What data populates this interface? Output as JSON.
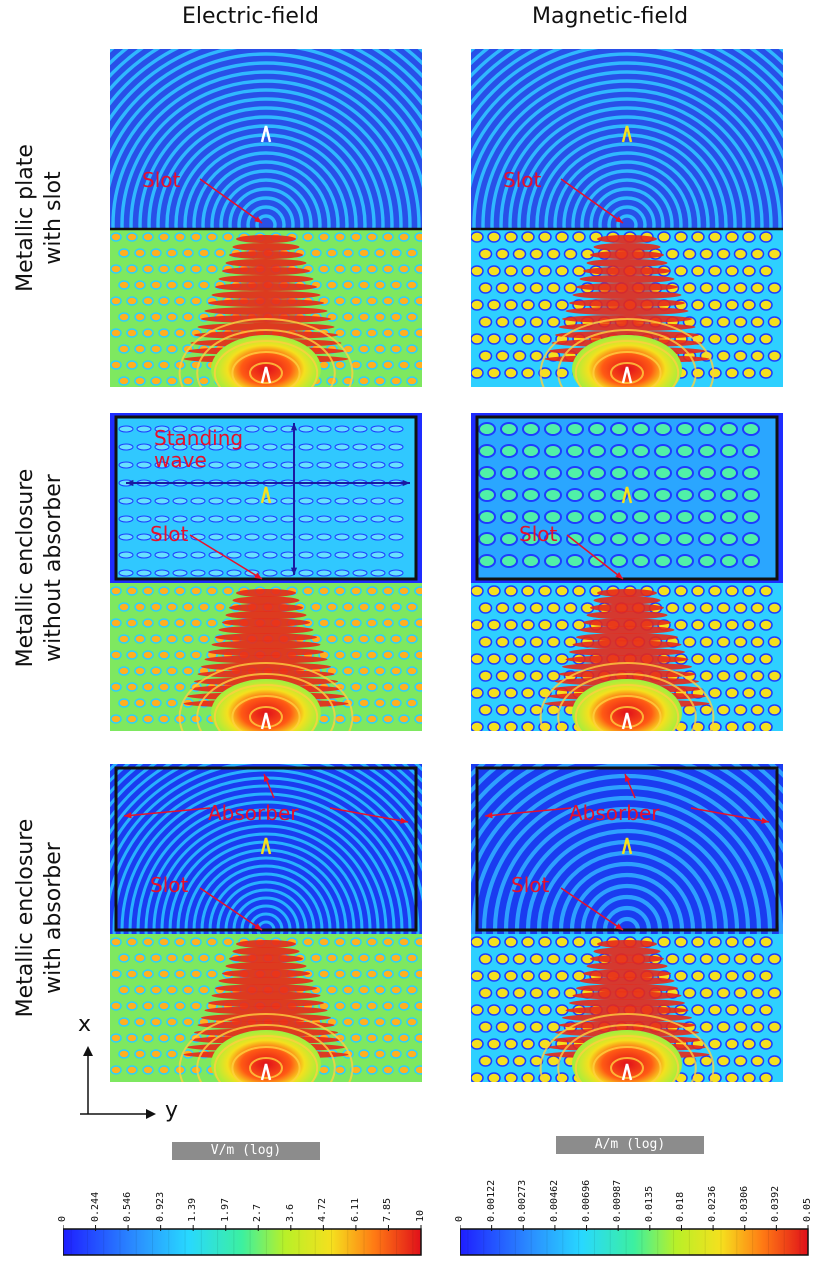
{
  "columns": [
    "Electric-field",
    "Magnetic-field"
  ],
  "rows": [
    {
      "label": "Metallic plate\nwith slot"
    },
    {
      "label": "Metallic enclosure\nwithout absorber"
    },
    {
      "label": "Metallic enclosure\nwith absorber"
    }
  ],
  "annotations": {
    "slot": "Slot",
    "standing_wave": "Standing\nwave",
    "absorber": "Absorber"
  },
  "axes": {
    "x": "x",
    "y": "y"
  },
  "colorbars": [
    {
      "title": "V/m (log)",
      "ticks": [
        "0",
        "0.244",
        "0.546",
        "0.923",
        "1.39",
        "1.97",
        "2.7",
        "3.6",
        "4.72",
        "6.11",
        "7.85",
        "10"
      ]
    },
    {
      "title": "A/m (log)",
      "ticks": [
        "0",
        "0.00122",
        "0.00273",
        "0.00462",
        "0.00696",
        "0.00987",
        "0.0135",
        "0.018",
        "0.0236",
        "0.0306",
        "0.0392",
        "0.05"
      ]
    }
  ],
  "colors": {
    "annotation": "#e8102a",
    "low": "#1a1aff",
    "high": "#e0101a"
  }
}
